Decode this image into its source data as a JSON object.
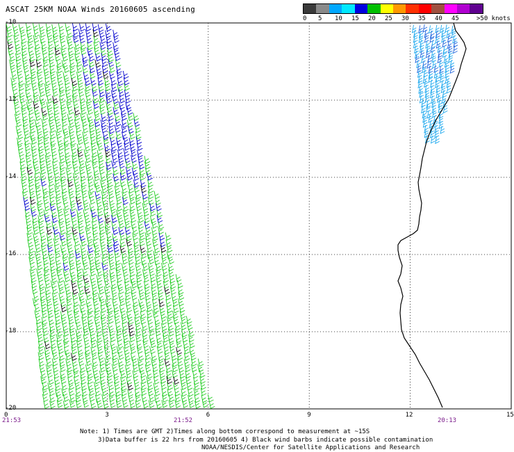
{
  "title": "ASCAT 25KM NOAA Winds 20160605 ascending",
  "legend": {
    "colors": [
      "#3a3a3a",
      "#8a8a8a",
      "#00a8ff",
      "#00e8ff",
      "#0000e0",
      "#00c000",
      "#ffff00",
      "#ff9800",
      "#ff3000",
      "#ff0000",
      "#a05040",
      "#ff00ff",
      "#b000d0",
      "#600090"
    ],
    "ticks": [
      "0",
      "5",
      "10",
      "15",
      "20",
      "25",
      "30",
      "35",
      "40",
      "45",
      ">50 knots"
    ]
  },
  "axes": {
    "lat_labels": [
      "-10",
      "-12",
      "-14",
      "-16",
      "-18",
      "-20"
    ],
    "lon_labels": [
      "0",
      "3",
      "6",
      "9",
      "12",
      "15"
    ]
  },
  "times": [
    "21:53",
    "21:52",
    "20:13"
  ],
  "notes": [
    "Note: 1) Times are GMT 2)Times along bottom correspond to measurement at ~15S",
    "3)Data buffer is 22 hrs from 20160605 4) Black wind barbs indicate possible contamination",
    "NOAA/NESDIS/Center for Satellite Applications and Research"
  ],
  "map_data": {
    "lat_range": [
      -20,
      -10
    ],
    "lon_range": [
      0,
      15
    ],
    "barb_colors": {
      "green": "#22cc22",
      "blue": "#0000cc",
      "light_blue": "#22aaee",
      "black": "#000000"
    }
  }
}
